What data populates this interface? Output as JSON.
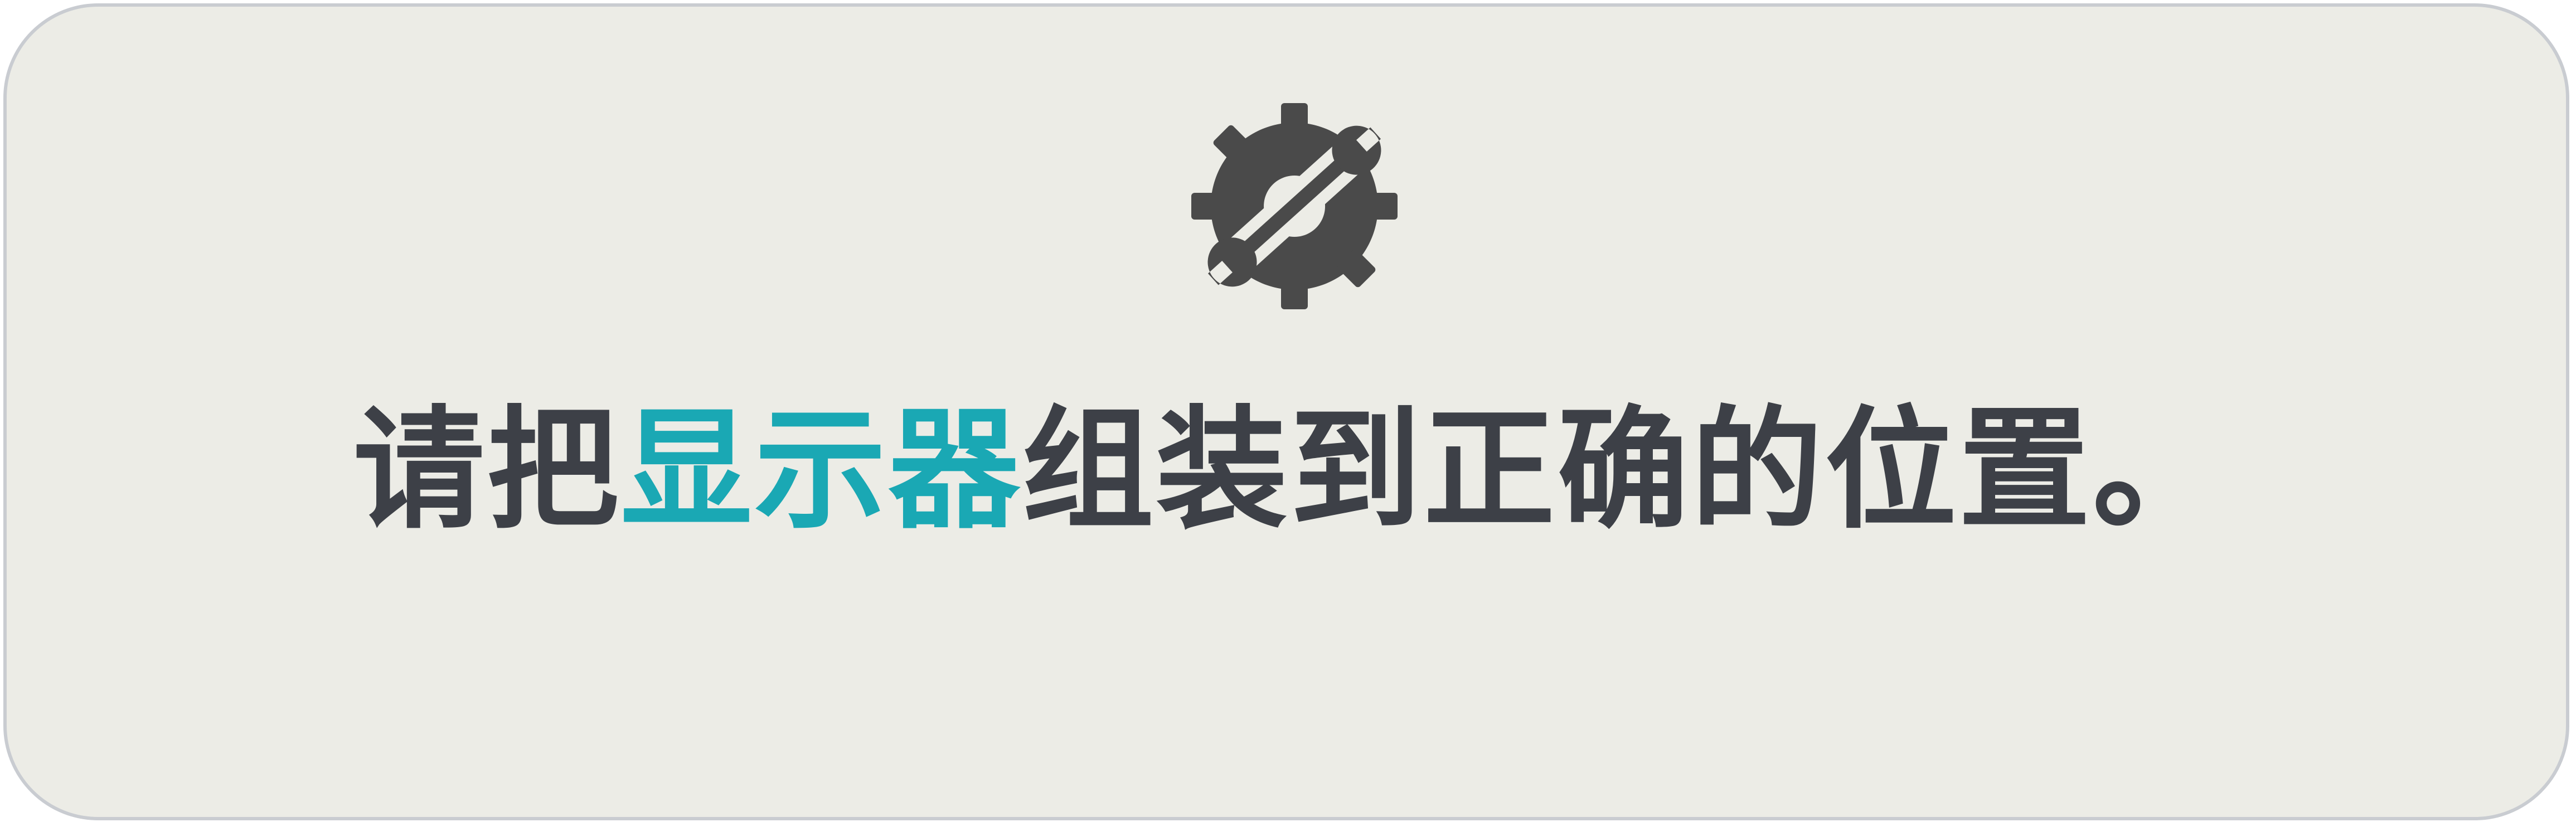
{
  "icon": {
    "name": "gear-wrench-icon",
    "color": "#4a4a4a"
  },
  "message": {
    "prefix": "请把",
    "highlight": "显示器",
    "suffix": "组装到正确的位置。"
  },
  "colors": {
    "text": "#3d4047",
    "highlight": "#1aa8b4",
    "background": "#ecece6",
    "border": "#c9ccd1"
  }
}
